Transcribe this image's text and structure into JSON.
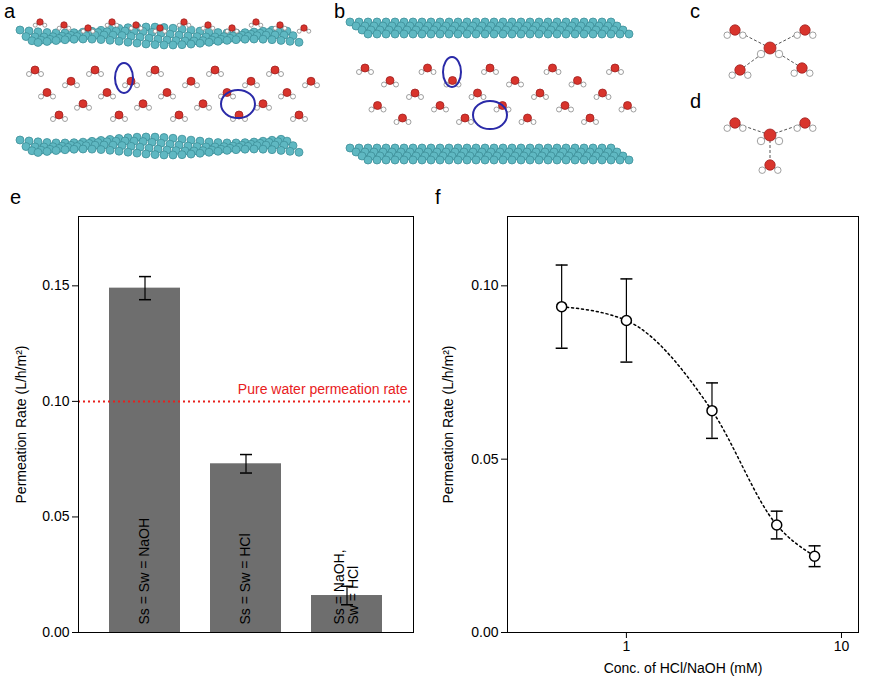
{
  "structure_panels": [
    {
      "label": "a"
    },
    {
      "label": "b"
    },
    {
      "label": "c"
    },
    {
      "label": "d"
    }
  ],
  "chart_data": [
    {
      "panel": "e",
      "type": "bar",
      "categories": [
        "Ss = Sw = NaOH",
        "Ss = Sw = HCl",
        "Ss = NaOH, Sw = HCl"
      ],
      "values": [
        0.149,
        0.073,
        0.016
      ],
      "errors": [
        0.005,
        0.004,
        0.004
      ],
      "color": "#6e6e6e",
      "ylabel": "Permeation Rate (L/h/m²)",
      "ylim": [
        0,
        0.18
      ],
      "yticks": [
        {
          "value": 0,
          "label": "0.00"
        },
        0.05,
        {
          "value": 0.1,
          "label": "0.10"
        },
        0.15
      ],
      "tick_labels": "y",
      "reference": {
        "value": 0.1,
        "label": "Pure water permeation rate",
        "color": "#e8201c",
        "line_style": "dotted"
      }
    },
    {
      "panel": "f",
      "type": "line",
      "x": [
        0.5,
        1,
        2.5,
        5,
        7.5
      ],
      "values": [
        0.094,
        0.09,
        0.064,
        0.031,
        0.022
      ],
      "errors": [
        0.012,
        0.012,
        0.008,
        0.004,
        0.003
      ],
      "color": "#000000",
      "marker": "open circle",
      "line_style": "dotted",
      "log": "x",
      "xlabel": "Conc. of HCl/NaOH (mM)",
      "ylabel": "Permeation Rate (L/h/m²)",
      "xlim": [
        0.28,
        12
      ],
      "xticks": [
        1,
        10
      ],
      "ylim": [
        0,
        0.12
      ],
      "yticks": [
        {
          "value": 0,
          "label": "0.00"
        },
        0.05,
        {
          "value": 0.1,
          "label": "0.10"
        }
      ]
    }
  ]
}
